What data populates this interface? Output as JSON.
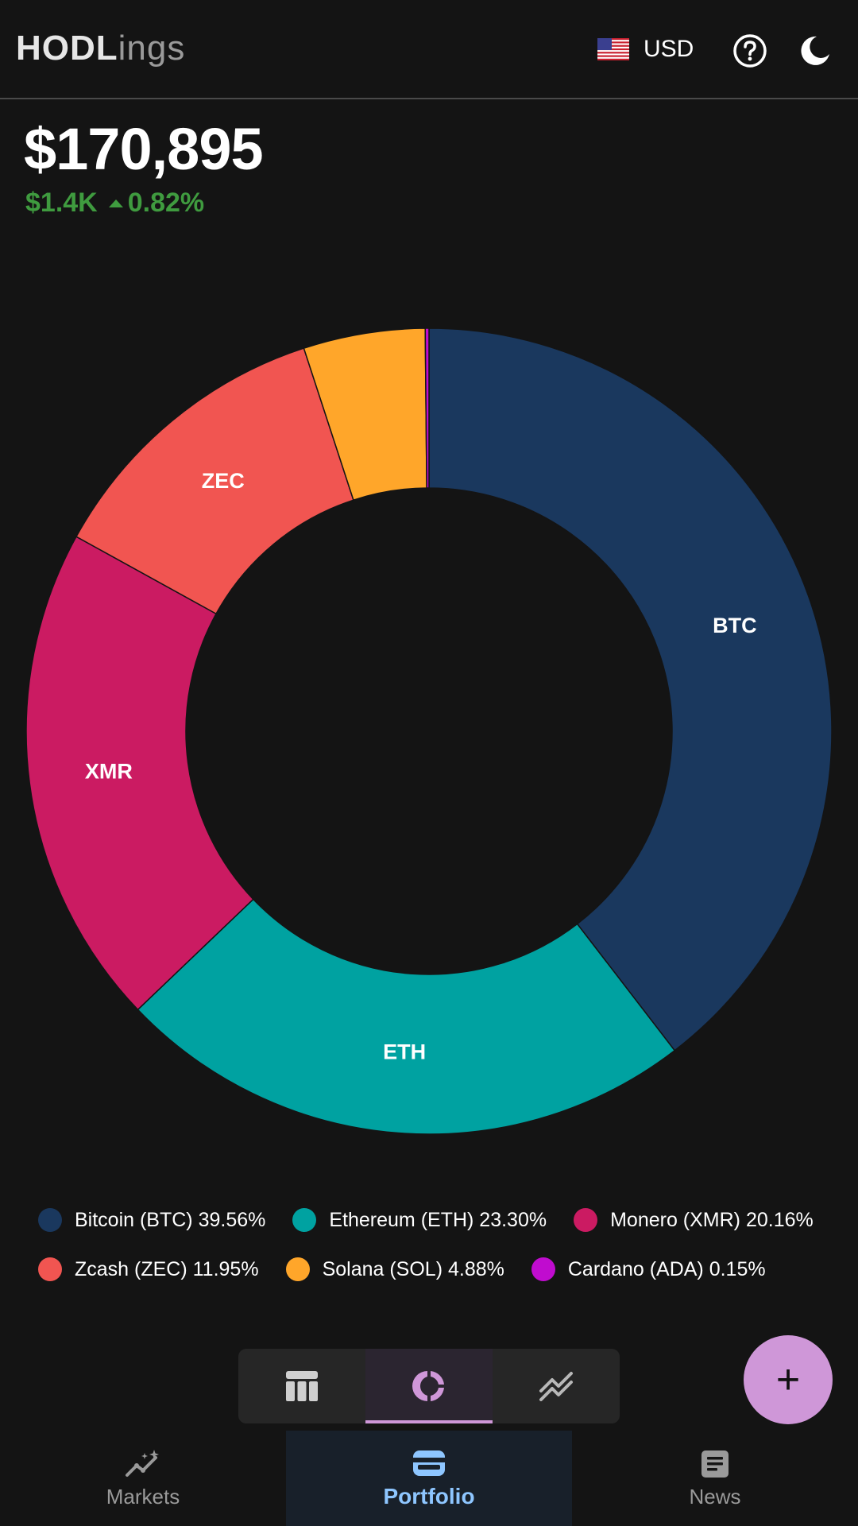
{
  "header": {
    "logo_bold": "HODL",
    "logo_light": "ings",
    "currency": "USD"
  },
  "summary": {
    "total": "$170,895",
    "change_amount": "$1.4K",
    "change_percent": "0.82%"
  },
  "chart_data": {
    "type": "pie",
    "categories": [
      "Bitcoin (BTC)",
      "Ethereum (ETH)",
      "Monero (XMR)",
      "Zcash (ZEC)",
      "Solana (SOL)",
      "Cardano (ADA)"
    ],
    "values": [
      39.56,
      23.3,
      20.16,
      11.95,
      4.88,
      0.15
    ],
    "segment_labels": [
      "BTC",
      "ETH",
      "XMR",
      "ZEC",
      "",
      ""
    ],
    "colors": [
      "#1a385e",
      "#00a2a1",
      "#cb1b62",
      "#f15551",
      "#ffa62a",
      "#c00ccf"
    ],
    "legend_placement": "bottom"
  },
  "legend": [
    {
      "label": "Bitcoin (BTC) 39.56%",
      "color": "#1a385e"
    },
    {
      "label": "Ethereum (ETH) 23.30%",
      "color": "#00a2a1"
    },
    {
      "label": "Monero (XMR) 20.16%",
      "color": "#cb1b62"
    },
    {
      "label": "Zcash (ZEC) 11.95%",
      "color": "#f15551"
    },
    {
      "label": "Solana (SOL) 4.88%",
      "color": "#ffa62a"
    },
    {
      "label": "Cardano (ADA) 0.15%",
      "color": "#c00ccf"
    }
  ],
  "view_toggle": {
    "options": [
      "table-icon",
      "donut-chart-icon",
      "line-chart-icon"
    ],
    "selected": 1
  },
  "fab": {
    "icon": "plus-icon",
    "label": "+"
  },
  "nav": {
    "markets": "Markets",
    "portfolio": "Portfolio",
    "news": "News",
    "active": "Portfolio"
  },
  "colors": {
    "accent": "#cf97d8",
    "positive": "#3f9b3f",
    "nav_active": "#8ec6ff"
  }
}
